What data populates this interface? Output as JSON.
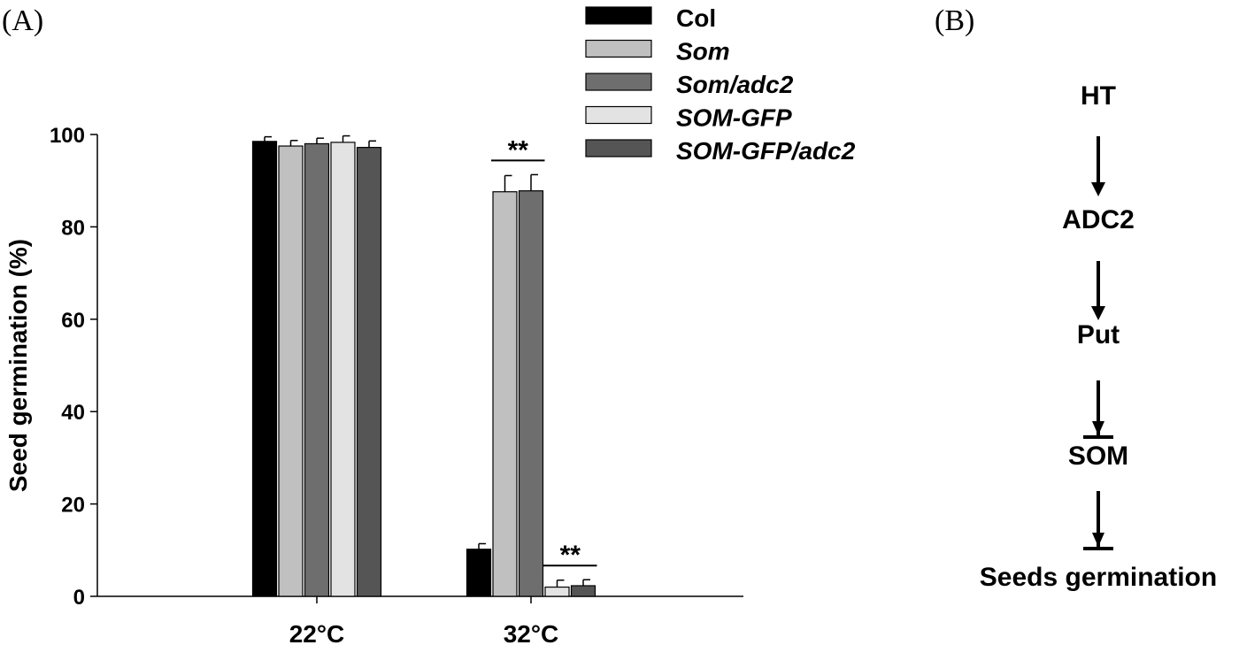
{
  "panel_a_label": "(A)",
  "panel_b_label": "(B)",
  "chart_data": {
    "type": "bar",
    "title": "",
    "xlabel": "",
    "ylabel": "Seed germination (%)",
    "ylim": [
      0,
      100
    ],
    "yticks": [
      0,
      20,
      40,
      60,
      80,
      100
    ],
    "categories": [
      "22°C",
      "32°C"
    ],
    "series": [
      {
        "name": "Col",
        "italic": false,
        "color": "#000000",
        "values": [
          98.5,
          10.2
        ],
        "errors": [
          1.0,
          1.2
        ]
      },
      {
        "name": "Som",
        "italic": true,
        "color": "#c0c0c0",
        "values": [
          97.5,
          87.6
        ],
        "errors": [
          1.2,
          3.5
        ]
      },
      {
        "name": "Som/adc2",
        "italic": true,
        "color": "#6e6e6e",
        "values": [
          98.0,
          87.8
        ],
        "errors": [
          1.2,
          3.5
        ]
      },
      {
        "name": "SOM-GFP",
        "italic": true,
        "color": "#e3e3e3",
        "values": [
          98.3,
          2.0
        ],
        "errors": [
          1.4,
          1.5
        ]
      },
      {
        "name": "SOM-GFP/adc2",
        "italic": true,
        "color": "#555555",
        "values": [
          97.2,
          2.3
        ],
        "errors": [
          1.4,
          1.3
        ]
      }
    ],
    "annotations": [
      {
        "text": "**",
        "category": "32°C",
        "series_span": [
          1,
          2
        ]
      },
      {
        "text": "**",
        "category": "32°C",
        "series_span": [
          3,
          4
        ]
      }
    ],
    "legend_position": "top-right",
    "grid": false
  },
  "diagram": {
    "nodes": [
      "HT",
      "ADC2",
      "Put",
      "SOM",
      "Seeds germination"
    ],
    "edges": [
      {
        "from": "HT",
        "to": "ADC2",
        "type": "promotes"
      },
      {
        "from": "ADC2",
        "to": "Put",
        "type": "promotes"
      },
      {
        "from": "Put",
        "to": "SOM",
        "type": "inhibits"
      },
      {
        "from": "SOM",
        "to": "Seeds germination",
        "type": "inhibits"
      }
    ]
  }
}
